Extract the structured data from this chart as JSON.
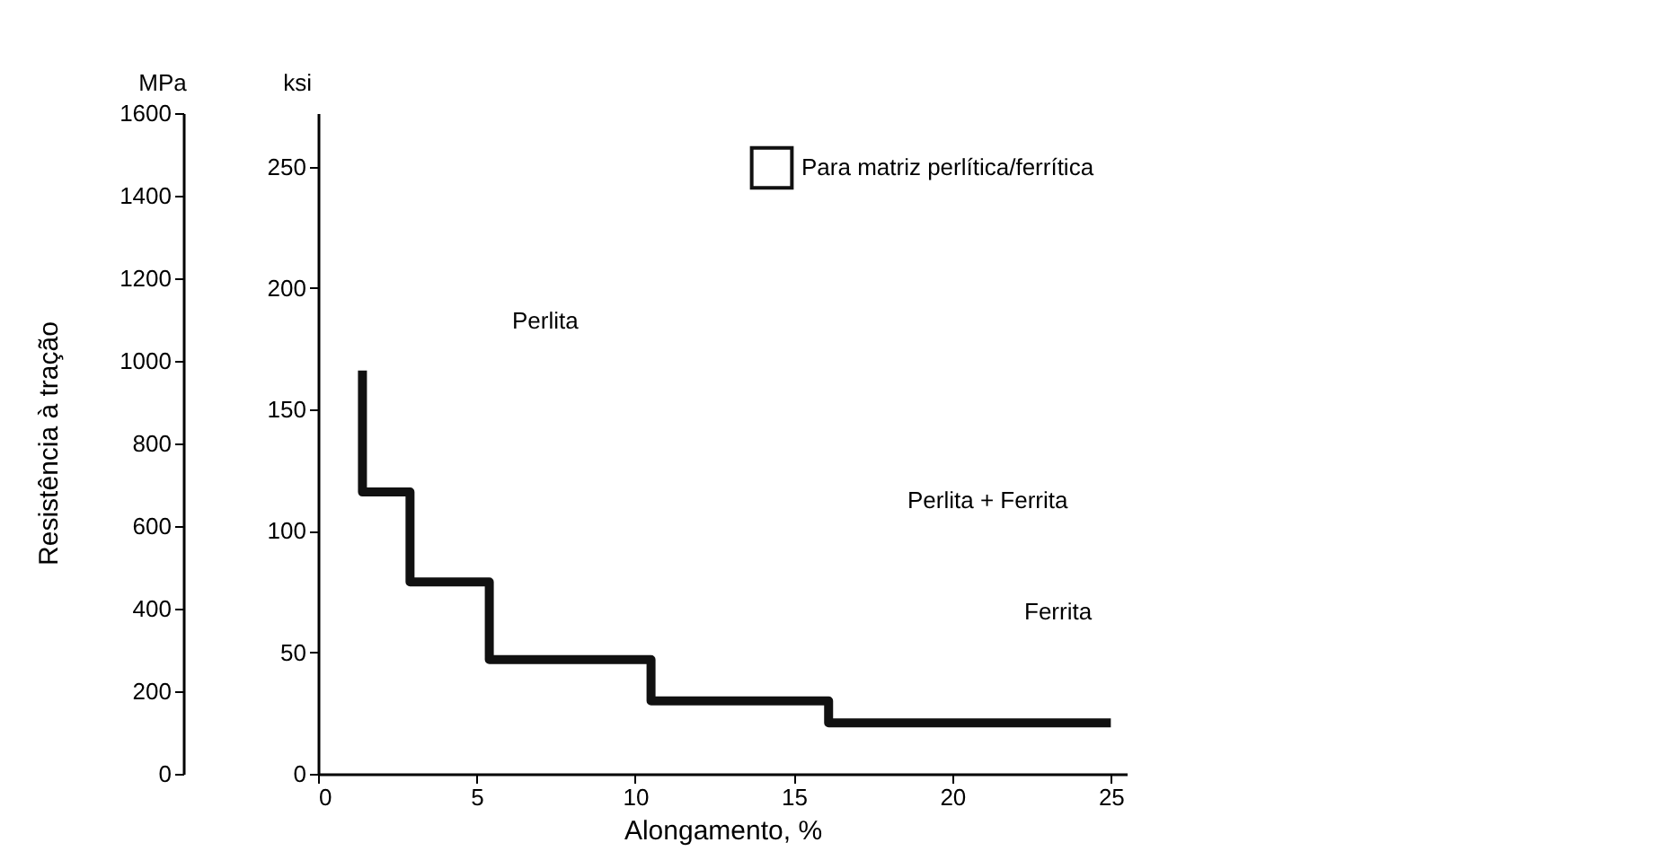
{
  "chart_data": {
    "type": "step",
    "xlabel": "Alongamento, %",
    "ylabel": "ksi",
    "y2label": "MPa",
    "x": [
      1.4,
      1.4,
      2.9,
      5.4,
      10.5,
      16.1,
      25
    ],
    "series": [
      {
        "name": "Para matriz perlítica/ferrítica",
        "color": "#111111",
        "values": [
          166,
          116,
          79,
          47,
          30,
          21,
          21
        ]
      }
    ],
    "xlim": [
      0,
      25.5
    ],
    "xticks": [
      0,
      5,
      10,
      15,
      20,
      25
    ],
    "ylim": [
      0,
      272
    ],
    "yticks": [
      0,
      50,
      100,
      150,
      200,
      250
    ],
    "y2lim": [
      0,
      1600
    ],
    "y2ticks": [
      0,
      200,
      400,
      600,
      800,
      1000,
      1200,
      1400,
      1600
    ],
    "legend": "top right",
    "annotations": [
      "Resistência à tração",
      "Perlita",
      "Perlita + Ferrita",
      "Ferrita"
    ]
  }
}
